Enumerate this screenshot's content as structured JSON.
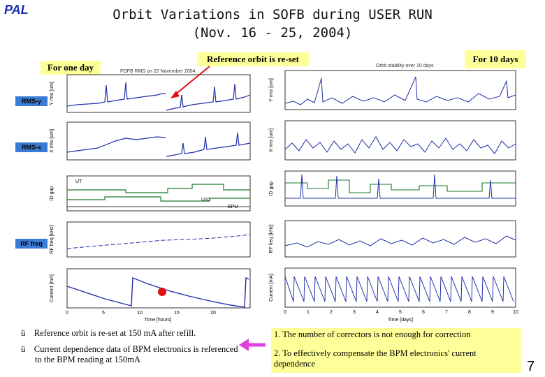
{
  "logo": "PAL",
  "title_line1": "Orbit Variations in SOFB during USER RUN",
  "title_line2": "(Nov. 16 - 25, 2004)",
  "callouts": {
    "one_day": "For one day",
    "reset": "Reference orbit is re-set",
    "ten_days": "For 10 days"
  },
  "row_labels": [
    "RMS-y",
    "RMS-x",
    "RF freq"
  ],
  "left_panel": {
    "caption": "FOFB RMS on 22 November 2004",
    "xticks": [
      "0",
      "5",
      "10",
      "15",
      "20"
    ],
    "xlabel": "Time [hours]",
    "ylabels": [
      "Y rms [um]",
      "X rms [um]",
      "ID gap",
      "RF freq [kHz]",
      "Current [mA]"
    ],
    "gap_labels": [
      "UT",
      "U10",
      "EPU"
    ]
  },
  "right_panel": {
    "caption": "Orbit stability over 10 days",
    "xticks": [
      "0",
      "1",
      "2",
      "3",
      "4",
      "5",
      "6",
      "7",
      "8",
      "9",
      "10"
    ],
    "xlabel": "Time [days]",
    "ylabels": [
      "Y rms [um]",
      "X rms [um]",
      "ID gap",
      "RF freq [kHz]",
      "Current [mA]"
    ]
  },
  "bullets": [
    "Reference orbit is re-set at 150 mA after refill.",
    "Current dependence data of BPM electronics is referenced to the BPM reading at 150mA"
  ],
  "check_glyph": "ü",
  "notes": [
    "1. The number of correctors is not enough for correction",
    "2. To effectively compensate the BPM electronics' current dependence"
  ],
  "page_number": "7",
  "colors": {
    "trace": "#1f2fa8",
    "green": "#1a7a2a",
    "arrow_red": "#e01010",
    "arrow_magenta": "#e040e0"
  }
}
